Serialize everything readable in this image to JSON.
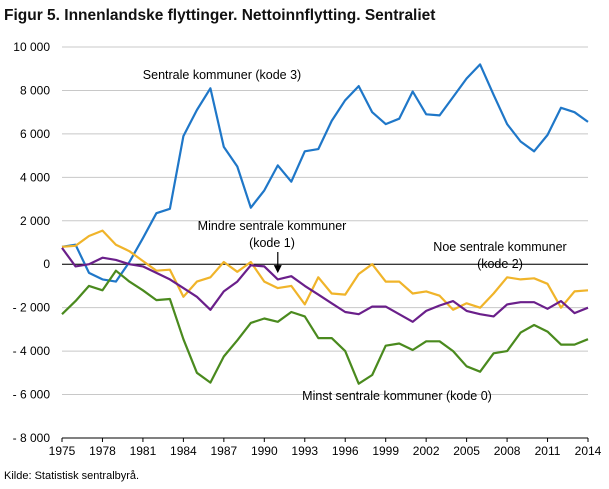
{
  "title": "Figur 5. Innenlandske flyttinger. Nettoinnflytting. Sentraliet",
  "source": "Kilde: Statistisk sentralbyrå.",
  "chart_data": {
    "type": "line",
    "title": "Figur 5. Innenlandske flyttinger. Nettoinnflytting. Sentraliet",
    "xlabel": "",
    "ylabel": "",
    "xlim": [
      1975,
      2014
    ],
    "ylim": [
      -8000,
      10000
    ],
    "grid": "horizontal",
    "legend": "none (inline labels)",
    "x_ticks": [
      "1975",
      "1978",
      "1981",
      "1984",
      "1987",
      "1990",
      "1993",
      "1996",
      "1999",
      "2002",
      "2005",
      "2008",
      "2011",
      "2014"
    ],
    "y_ticks": [
      {
        "value": 10000,
        "label": "10 000"
      },
      {
        "value": 8000,
        "label": "8 000"
      },
      {
        "value": 6000,
        "label": "6 000"
      },
      {
        "value": 4000,
        "label": "4 000"
      },
      {
        "value": 2000,
        "label": "2 000"
      },
      {
        "value": 0,
        "label": "0"
      },
      {
        "value": -2000,
        "label": "- 2 000"
      },
      {
        "value": -4000,
        "label": "- 4 000"
      },
      {
        "value": -6000,
        "label": "- 6 000"
      },
      {
        "value": -8000,
        "label": "- 8 000"
      }
    ],
    "x": [
      1975,
      1976,
      1977,
      1978,
      1979,
      1980,
      1981,
      1982,
      1983,
      1984,
      1985,
      1986,
      1987,
      1988,
      1989,
      1990,
      1991,
      1992,
      1993,
      1994,
      1995,
      1996,
      1997,
      1998,
      1999,
      2000,
      2001,
      2002,
      2003,
      2004,
      2005,
      2006,
      2007,
      2008,
      2009,
      2010,
      2011,
      2012,
      2013,
      2014
    ],
    "series": [
      {
        "name": "Sentrale kommuner (kode 3)",
        "color": "#1f77c8",
        "values": [
          800,
          900,
          -400,
          -700,
          -800,
          100,
          1200,
          2350,
          2550,
          5900,
          7100,
          8100,
          5400,
          4500,
          2600,
          3400,
          4550,
          3800,
          5200,
          5300,
          6600,
          7550,
          8200,
          7000,
          6450,
          6700,
          7950,
          6900,
          6850,
          7700,
          8550,
          9200,
          7800,
          6450,
          5650,
          5200,
          5950,
          7200,
          7000,
          6550
        ]
      },
      {
        "name": "Noe sentrale kommuner (kode 2)",
        "color": "#f0b42a",
        "values": [
          800,
          850,
          1300,
          1550,
          900,
          600,
          150,
          -300,
          -250,
          -1500,
          -800,
          -600,
          100,
          -350,
          100,
          -800,
          -1100,
          -1000,
          -1850,
          -600,
          -1350,
          -1400,
          -450,
          0,
          -800,
          -800,
          -1350,
          -1250,
          -1450,
          -2100,
          -1800,
          -2000,
          -1350,
          -600,
          -700,
          -650,
          -900,
          -2000,
          -1250,
          -1200
        ]
      },
      {
        "name": "Mindre sentrale kommuner (kode 1)",
        "color": "#6a1f8a",
        "values": [
          750,
          -100,
          0,
          300,
          200,
          0,
          -100,
          -400,
          -700,
          -1100,
          -1500,
          -2100,
          -1250,
          -800,
          -50,
          -100,
          -700,
          -550,
          -1000,
          -1400,
          -1800,
          -2200,
          -2300,
          -1950,
          -1950,
          -2300,
          -2650,
          -2150,
          -1900,
          -1700,
          -2150,
          -2300,
          -2400,
          -1850,
          -1750,
          -1750,
          -2050,
          -1700,
          -2250,
          -2000
        ]
      },
      {
        "name": "Minst sentrale kommuner (kode 0)",
        "color": "#4a8a1e",
        "values": [
          -2300,
          -1700,
          -1000,
          -1200,
          -300,
          -800,
          -1200,
          -1650,
          -1600,
          -3450,
          -5000,
          -5450,
          -4250,
          -3500,
          -2700,
          -2500,
          -2650,
          -2200,
          -2400,
          -3400,
          -3400,
          -4000,
          -5500,
          -5100,
          -3750,
          -3650,
          -3950,
          -3550,
          -3550,
          -4000,
          -4700,
          -4950,
          -4100,
          -4000,
          -3150,
          -2800,
          -3100,
          -3700,
          -3700,
          -3450
        ]
      }
    ],
    "annotations": [
      {
        "id": "label-kode3",
        "lines": [
          "Sentrale kommuner (kode 3)"
        ]
      },
      {
        "id": "label-kode1",
        "lines": [
          "Mindre sentrale kommuner",
          "(kode 1)"
        ]
      },
      {
        "id": "label-kode2",
        "lines": [
          "Noe sentrale kommuner",
          "(kode 2)"
        ]
      },
      {
        "id": "label-kode0",
        "lines": [
          "Minst sentrale kommuner (kode 0)"
        ]
      }
    ]
  }
}
